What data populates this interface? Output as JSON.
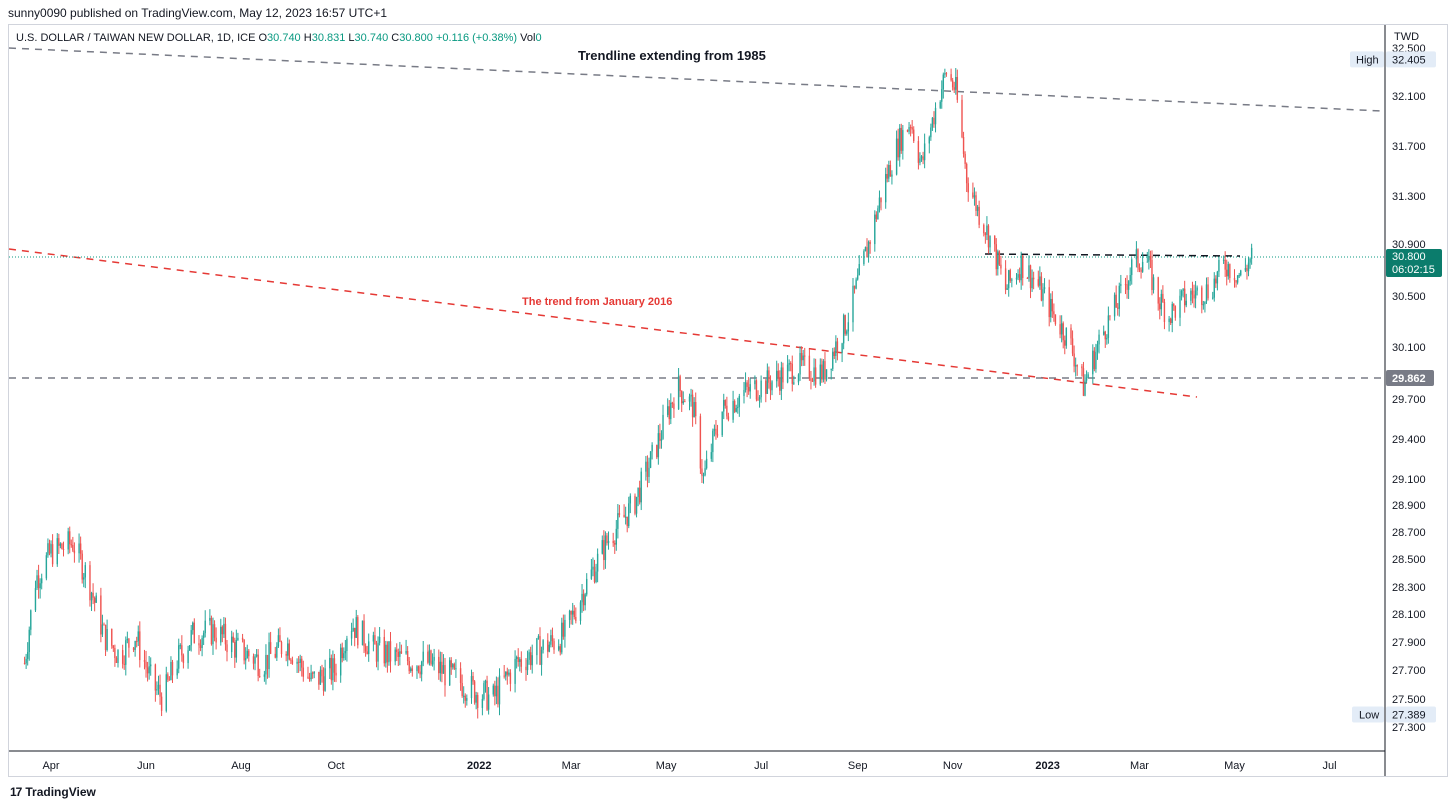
{
  "header": {
    "published": "sunny0090 published on TradingView.com, May 12, 2023 16:57 UTC+1"
  },
  "symbol": {
    "name": "U.S. DOLLAR / TAIWAN NEW DOLLAR, 1D, ICE",
    "o_label": "O",
    "o": "30.740",
    "h_label": "H",
    "h": "30.831",
    "l_label": "L",
    "l": "30.740",
    "c_label": "C",
    "c": "30.800",
    "change": "+0.116 (+0.38%)",
    "vol_label": "Vol",
    "vol": "0"
  },
  "footer": {
    "logo": "17",
    "brand": "TradingView"
  },
  "colors": {
    "up": "#26a69a",
    "down": "#ef5350",
    "price_tag": "#0b7c6c",
    "support_tag": "#787b86",
    "red_trend": "#e53935"
  },
  "chart_data": {
    "type": "candlestick",
    "currency": "TWD",
    "ylim": [
      27.2,
      32.5
    ],
    "y_ticks": [
      "32.500",
      "32.100",
      "31.700",
      "31.300",
      "30.900",
      "30.500",
      "30.100",
      "29.700",
      "29.400",
      "29.100",
      "28.900",
      "28.700",
      "28.500",
      "28.300",
      "28.100",
      "27.900",
      "27.700",
      "27.500",
      "27.300"
    ],
    "x_ticks": [
      "Apr",
      "Jun",
      "Aug",
      "Oct",
      "2022",
      "Mar",
      "May",
      "Jul",
      "Sep",
      "Nov",
      "2023",
      "Mar",
      "May",
      "Jul"
    ],
    "x_ticks_bold": [
      "2022",
      "2023"
    ],
    "high_label": "High",
    "high_value": "32.405",
    "low_label": "Low",
    "low_value": "27.389",
    "last_price": "30.800",
    "countdown": "06:02:15",
    "support_value": "29.862",
    "annotations": {
      "trend_1985": "Trendline extending from 1985",
      "trend_2016": "The trend from January 2016"
    },
    "price_path": [
      [
        "2021-03-15",
        27.75
      ],
      [
        "2021-03-22",
        28.35
      ],
      [
        "2021-04-01",
        28.55
      ],
      [
        "2021-04-15",
        28.62
      ],
      [
        "2021-04-25",
        28.35
      ],
      [
        "2021-05-05",
        27.95
      ],
      [
        "2021-05-15",
        27.8
      ],
      [
        "2021-05-25",
        27.95
      ],
      [
        "2021-06-05",
        27.6
      ],
      [
        "2021-06-12",
        27.5
      ],
      [
        "2021-06-20",
        27.75
      ],
      [
        "2021-07-01",
        27.95
      ],
      [
        "2021-07-15",
        27.98
      ],
      [
        "2021-07-30",
        27.85
      ],
      [
        "2021-08-15",
        27.75
      ],
      [
        "2021-08-30",
        27.9
      ],
      [
        "2021-09-15",
        27.62
      ],
      [
        "2021-09-30",
        27.7
      ],
      [
        "2021-10-10",
        28.05
      ],
      [
        "2021-10-25",
        27.85
      ],
      [
        "2021-11-10",
        27.78
      ],
      [
        "2021-11-30",
        27.75
      ],
      [
        "2021-12-15",
        27.65
      ],
      [
        "2021-12-30",
        27.55
      ],
      [
        "2022-01-10",
        27.5
      ],
      [
        "2022-01-25",
        27.75
      ],
      [
        "2022-02-10",
        27.85
      ],
      [
        "2022-02-25",
        27.95
      ],
      [
        "2022-03-10",
        28.3
      ],
      [
        "2022-03-25",
        28.65
      ],
      [
        "2022-04-10",
        28.9
      ],
      [
        "2022-04-25",
        29.35
      ],
      [
        "2022-05-08",
        29.8
      ],
      [
        "2022-05-18",
        29.65
      ],
      [
        "2022-05-25",
        29.1
      ],
      [
        "2022-06-05",
        29.6
      ],
      [
        "2022-06-20",
        29.75
      ],
      [
        "2022-07-10",
        29.85
      ],
      [
        "2022-07-25",
        29.95
      ],
      [
        "2022-08-10",
        29.9
      ],
      [
        "2022-08-25",
        30.3
      ],
      [
        "2022-09-08",
        30.9
      ],
      [
        "2022-09-18",
        31.4
      ],
      [
        "2022-09-28",
        31.75
      ],
      [
        "2022-10-05",
        31.9
      ],
      [
        "2022-10-12",
        31.55
      ],
      [
        "2022-10-22",
        32.05
      ],
      [
        "2022-10-28",
        32.3
      ],
      [
        "2022-11-03",
        32.15
      ],
      [
        "2022-11-10",
        31.45
      ],
      [
        "2022-11-18",
        31.15
      ],
      [
        "2022-11-25",
        30.95
      ],
      [
        "2022-12-05",
        30.55
      ],
      [
        "2022-12-15",
        30.75
      ],
      [
        "2022-12-25",
        30.6
      ],
      [
        "2023-01-05",
        30.35
      ],
      [
        "2023-01-15",
        30.15
      ],
      [
        "2023-01-24",
        29.8
      ],
      [
        "2023-02-05",
        30.2
      ],
      [
        "2023-02-15",
        30.45
      ],
      [
        "2023-02-25",
        30.75
      ],
      [
        "2023-03-05",
        30.8
      ],
      [
        "2023-03-12",
        30.5
      ],
      [
        "2023-03-20",
        30.35
      ],
      [
        "2023-04-01",
        30.5
      ],
      [
        "2023-04-15",
        30.55
      ],
      [
        "2023-04-25",
        30.75
      ],
      [
        "2023-05-05",
        30.65
      ],
      [
        "2023-05-12",
        30.8
      ]
    ]
  }
}
